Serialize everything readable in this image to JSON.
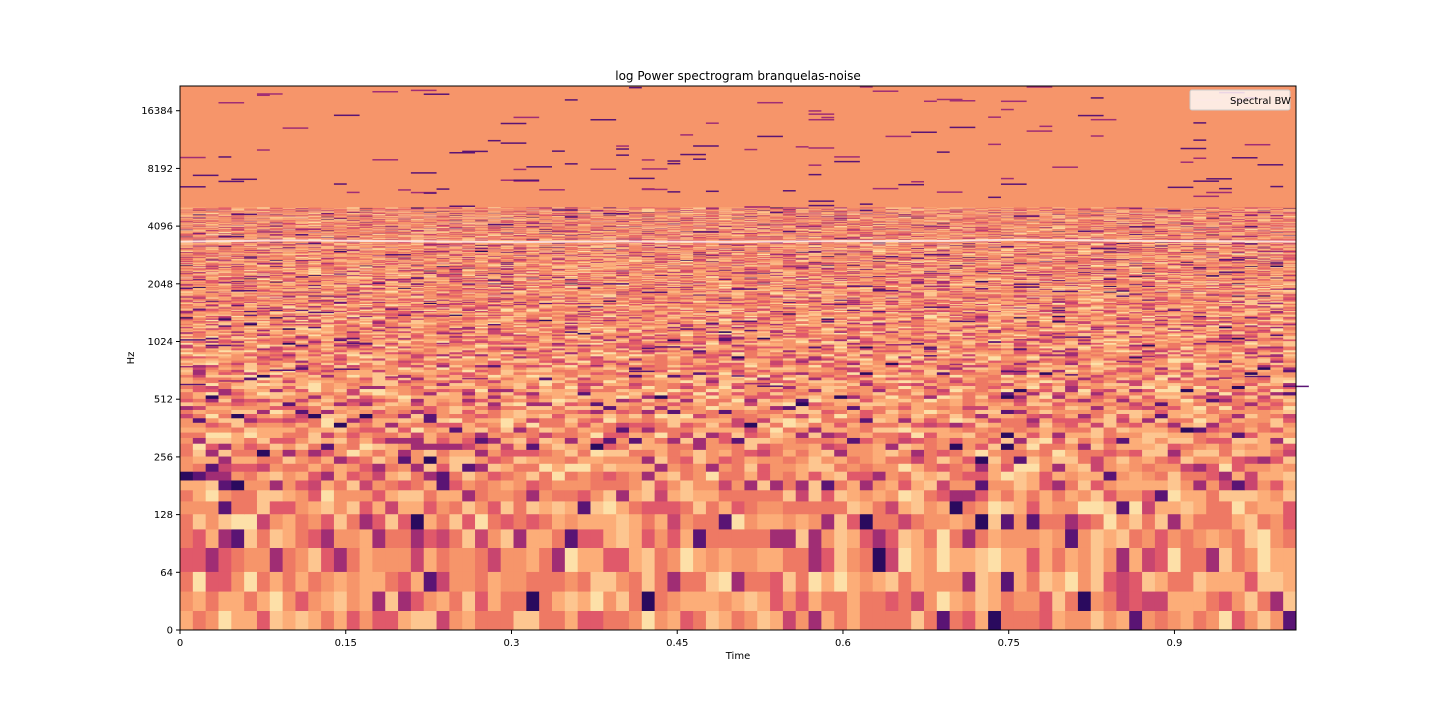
{
  "chart_data": {
    "type": "heatmap",
    "title": "log Power spectrogram branquelas-noise",
    "xlabel": "Time",
    "ylabel": "Hz",
    "x_ticks": [
      "0",
      "0.15",
      "0.3",
      "0.45",
      "0.6",
      "0.75",
      "0.9"
    ],
    "x_tick_values": [
      0,
      0.15,
      0.3,
      0.45,
      0.6,
      0.75,
      0.9
    ],
    "xlim": [
      0,
      1.01
    ],
    "y_scale": "symlog",
    "y_ticks": [
      "0",
      "64",
      "128",
      "256",
      "512",
      "1024",
      "2048",
      "4096",
      "8192",
      "16384"
    ],
    "y_tick_values": [
      0,
      64,
      128,
      256,
      512,
      1024,
      2048,
      4096,
      8192,
      16384
    ],
    "ylim": [
      0,
      22050
    ],
    "colormap": "magma",
    "series": [
      {
        "name": "Spectral BW",
        "x": [
          0,
          0.1,
          0.2,
          0.3,
          0.4,
          0.5,
          0.6,
          0.7,
          0.75,
          0.8,
          0.9,
          1.01
        ],
        "y": [
          3400,
          3450,
          3420,
          3380,
          3410,
          3390,
          3420,
          3430,
          3480,
          3460,
          3420,
          3400
        ],
        "color": "#fde9e4"
      }
    ],
    "legend": {
      "entries": [
        "Spectral BW"
      ],
      "position": "top-right"
    },
    "grid": false
  }
}
